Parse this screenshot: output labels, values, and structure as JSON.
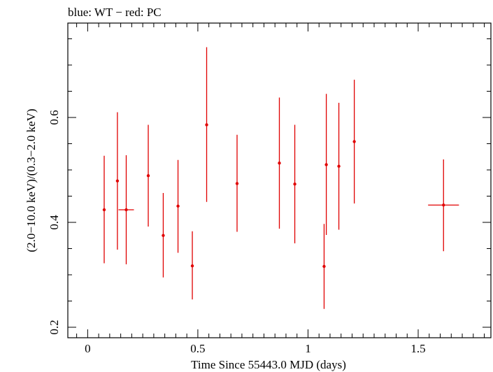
{
  "chart_data": {
    "type": "scatter",
    "title": "blue: WT − red: PC",
    "xlabel": "Time Since 55443.0 MJD (days)",
    "ylabel": "(2.0−10.0 keV)/(0.3−2.0 keV)",
    "xlim": [
      -0.09,
      1.83
    ],
    "ylim": [
      0.18,
      0.78
    ],
    "x_ticks": [
      0,
      0.5,
      1,
      1.5
    ],
    "x_tick_labels": [
      "0",
      "0.5",
      "1",
      "1.5"
    ],
    "y_ticks": [
      0.2,
      0.4,
      0.6
    ],
    "y_tick_labels": [
      "0.2",
      "0.4",
      "0.6"
    ],
    "grid": false,
    "series": [
      {
        "name": "PC",
        "color": "#e00000",
        "points": [
          {
            "x": 0.075,
            "y": 0.424,
            "ylo": 0.322,
            "yhi": 0.527,
            "xerr": 0
          },
          {
            "x": 0.135,
            "y": 0.479,
            "ylo": 0.348,
            "yhi": 0.61,
            "xerr": 0
          },
          {
            "x": 0.175,
            "y": 0.424,
            "ylo": 0.32,
            "yhi": 0.528,
            "xerr": 0.035
          },
          {
            "x": 0.275,
            "y": 0.489,
            "ylo": 0.392,
            "yhi": 0.586,
            "xerr": 0
          },
          {
            "x": 0.343,
            "y": 0.375,
            "ylo": 0.295,
            "yhi": 0.456,
            "xerr": 0
          },
          {
            "x": 0.41,
            "y": 0.431,
            "ylo": 0.342,
            "yhi": 0.519,
            "xerr": 0
          },
          {
            "x": 0.475,
            "y": 0.317,
            "ylo": 0.253,
            "yhi": 0.383,
            "xerr": 0
          },
          {
            "x": 0.54,
            "y": 0.586,
            "ylo": 0.439,
            "yhi": 0.734,
            "xerr": 0
          },
          {
            "x": 0.678,
            "y": 0.474,
            "ylo": 0.382,
            "yhi": 0.567,
            "xerr": 0
          },
          {
            "x": 0.87,
            "y": 0.513,
            "ylo": 0.388,
            "yhi": 0.638,
            "xerr": 0
          },
          {
            "x": 0.94,
            "y": 0.473,
            "ylo": 0.36,
            "yhi": 0.586,
            "xerr": 0
          },
          {
            "x": 1.073,
            "y": 0.316,
            "ylo": 0.235,
            "yhi": 0.397,
            "xerr": 0
          },
          {
            "x": 1.083,
            "y": 0.51,
            "ylo": 0.376,
            "yhi": 0.645,
            "xerr": 0
          },
          {
            "x": 1.14,
            "y": 0.507,
            "ylo": 0.386,
            "yhi": 0.628,
            "xerr": 0
          },
          {
            "x": 1.21,
            "y": 0.554,
            "ylo": 0.436,
            "yhi": 0.672,
            "xerr": 0
          },
          {
            "x": 1.615,
            "y": 0.433,
            "ylo": 0.345,
            "yhi": 0.52,
            "xerr": 0.07
          }
        ]
      }
    ]
  }
}
